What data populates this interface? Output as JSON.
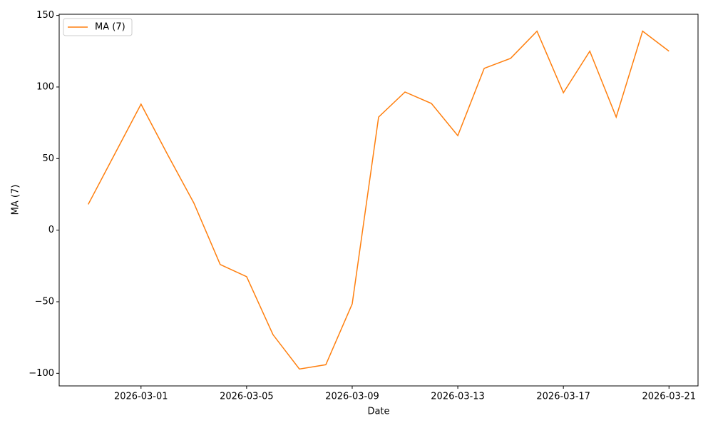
{
  "chart_data": {
    "type": "line",
    "x_label": "Date",
    "y_label": "MA (7)",
    "x": [
      "2026-02-27",
      "2026-02-28",
      "2026-03-01",
      "2026-03-02",
      "2026-03-03",
      "2026-03-04",
      "2026-03-05",
      "2026-03-06",
      "2026-03-07",
      "2026-03-08",
      "2026-03-09",
      "2026-03-10",
      "2026-03-11",
      "2026-03-12",
      "2026-03-13",
      "2026-03-14",
      "2026-03-15",
      "2026-03-16",
      "2026-03-17",
      "2026-03-18",
      "2026-03-19",
      "2026-03-20",
      "2026-03-21"
    ],
    "series": [
      {
        "name": "MA (7)",
        "color": "#ff7f0e",
        "values": [
          18,
          53,
          88,
          53,
          19,
          -24,
          -32.5,
          -73,
          -97,
          -94,
          -51.5,
          79,
          96.5,
          88.5,
          66,
          113,
          120,
          139,
          96,
          125,
          79,
          139,
          125
        ]
      }
    ],
    "xlim": [
      "2026-02-25T21:36",
      "2026-03-22T02:24"
    ],
    "xticks": [
      "2026-03-01",
      "2026-03-05",
      "2026-03-09",
      "2026-03-13",
      "2026-03-17",
      "2026-03-21"
    ],
    "ylim": [
      -108.8,
      150.8
    ],
    "yticks": [
      {
        "value": -100,
        "label": "−100"
      },
      {
        "value": -50,
        "label": "−50"
      },
      0,
      50,
      100,
      150
    ],
    "grid": false,
    "legend": "upper-left"
  }
}
